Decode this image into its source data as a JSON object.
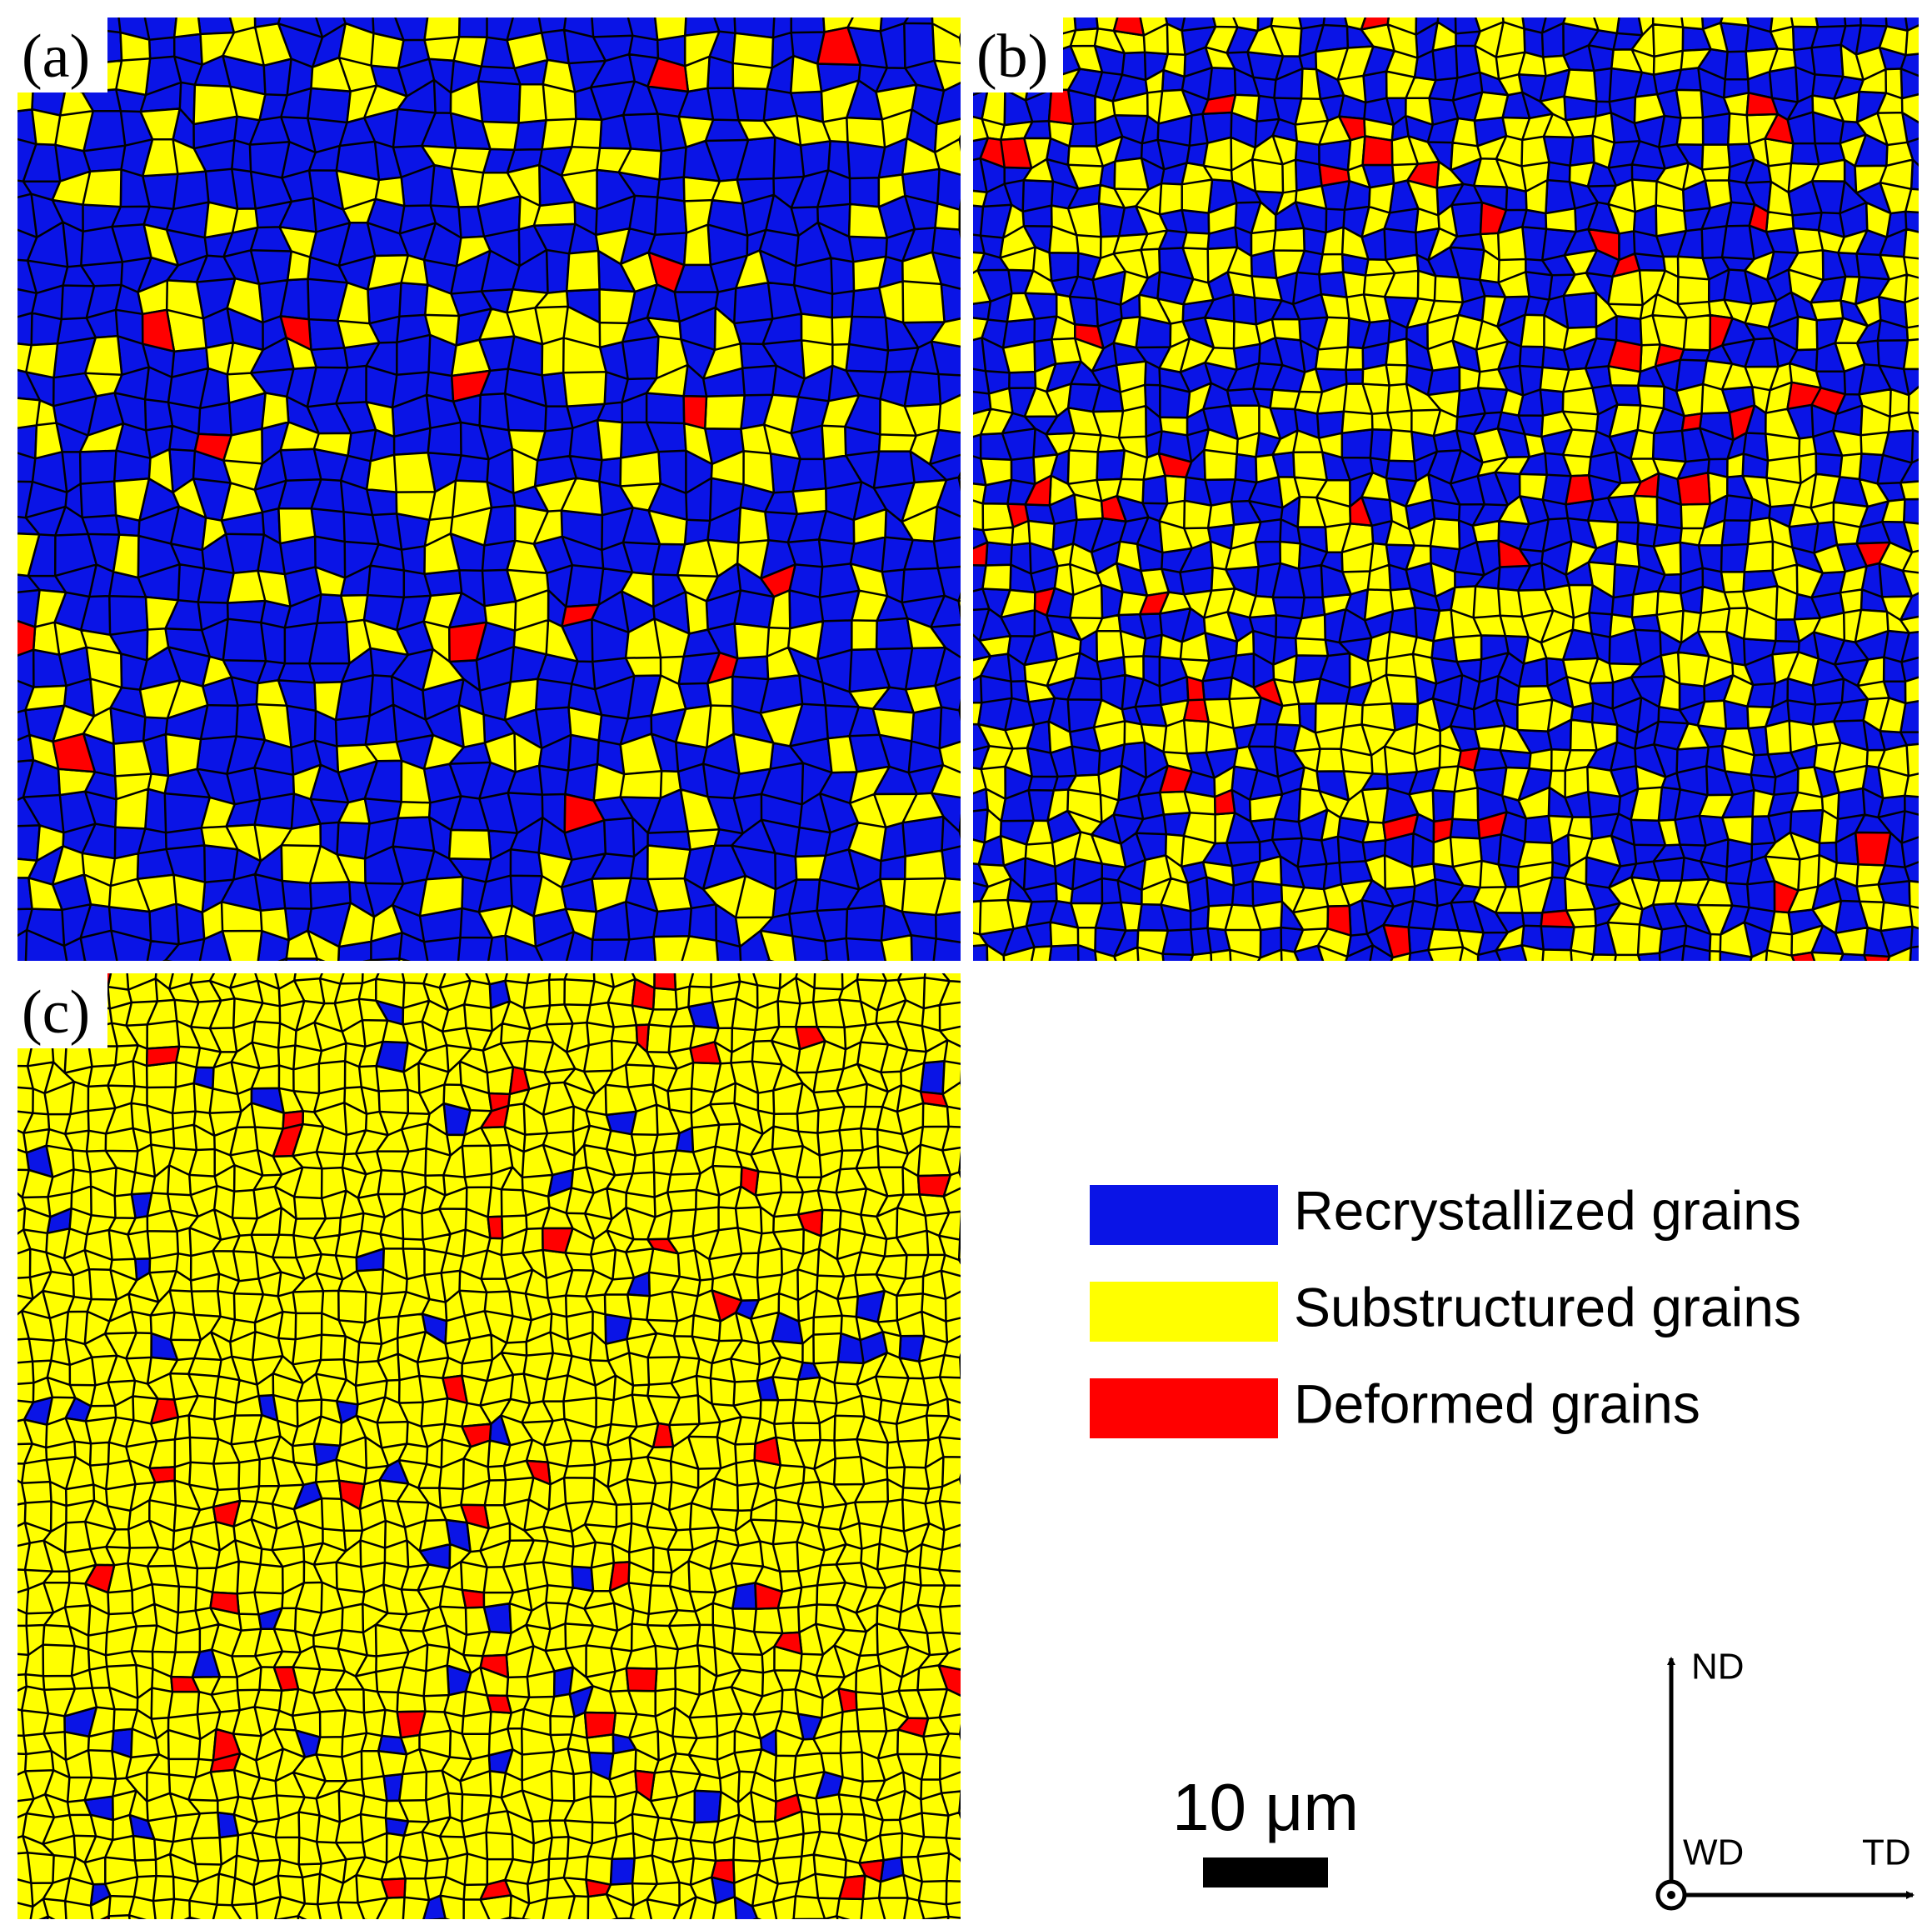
{
  "panels": [
    {
      "label": "(a)"
    },
    {
      "label": "(b)"
    },
    {
      "label": "(c)"
    }
  ],
  "legend": [
    {
      "label": "Recrystallized grains"
    },
    {
      "label": "Substructured grains"
    },
    {
      "label": "Deformed grains"
    }
  ],
  "scale_bar": {
    "label": "10 μm"
  },
  "axes": {
    "up": "ND",
    "origin": "WD",
    "right": "TD"
  }
}
